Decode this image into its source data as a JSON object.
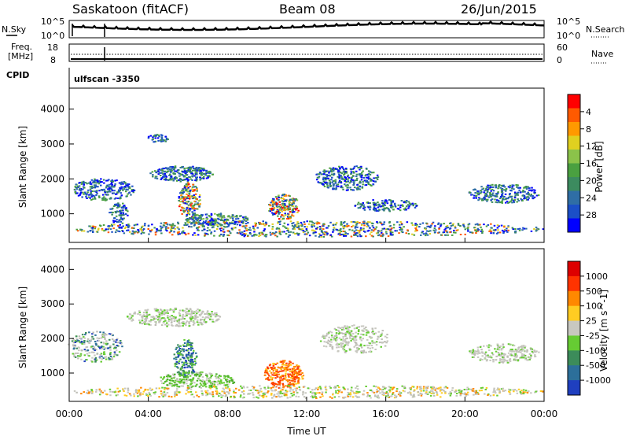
{
  "header": {
    "station": "Saskatoon (fitACF)",
    "beam": "Beam 08",
    "date": "26/Jun/2015"
  },
  "panels": {
    "nsky_label": "N.Sky",
    "nsky_ticks": [
      "10^5",
      "10^0"
    ],
    "nsearch_label": "N.Search",
    "nsearch_ticks": [
      "10^5",
      "10^0"
    ],
    "freq_label_1": "Freq.",
    "freq_label_2": "[MHz]",
    "freq_ticks": [
      "18",
      "8"
    ],
    "nave_label": "Nave",
    "nave_ticks": [
      "60",
      "0"
    ],
    "cpid_label": "CPID",
    "cpid_value": "ulfscan -3350"
  },
  "chart_data": [
    {
      "type": "heatmap",
      "name": "power",
      "ylabel": "Slant Range [km]",
      "yticks": [
        1000,
        2000,
        3000,
        4000
      ],
      "ylim": [
        180,
        4600
      ],
      "xlim_hours": [
        0,
        24
      ],
      "colorbar_label": "Power [dB]",
      "colorbar_ticks": [
        "4",
        "8",
        "12",
        "16",
        "20",
        "24",
        "28"
      ],
      "colorbar_colors": [
        "#0000ff",
        "#1b4fc7",
        "#2f6ea5",
        "#3c8b5f",
        "#4aa040",
        "#8bc34a",
        "#e0d020",
        "#ff9900",
        "#ff5a00",
        "#ff0000"
      ]
    },
    {
      "type": "heatmap",
      "name": "velocity",
      "ylabel": "Slant Range [km]",
      "yticks": [
        1000,
        2000,
        3000,
        4000
      ],
      "ylim": [
        180,
        4600
      ],
      "xlim_hours": [
        0,
        24
      ],
      "colorbar_label": "Velocity [m s^-1]",
      "colorbar_ticks": [
        "1000",
        "500",
        "100",
        "25",
        "-25",
        "-100",
        "-500",
        "-1000"
      ],
      "colorbar_colors": [
        "#1f3fbf",
        "#2c6f9a",
        "#3c8c5a",
        "#66cc33",
        "#c8c8c0",
        "#ffcc22",
        "#ff8800",
        "#ff3300",
        "#dd0000"
      ]
    }
  ],
  "xaxis": {
    "label": "Time UT",
    "ticks": [
      "00:00",
      "04:00",
      "08:00",
      "12:00",
      "16:00",
      "20:00",
      "00:00"
    ]
  }
}
